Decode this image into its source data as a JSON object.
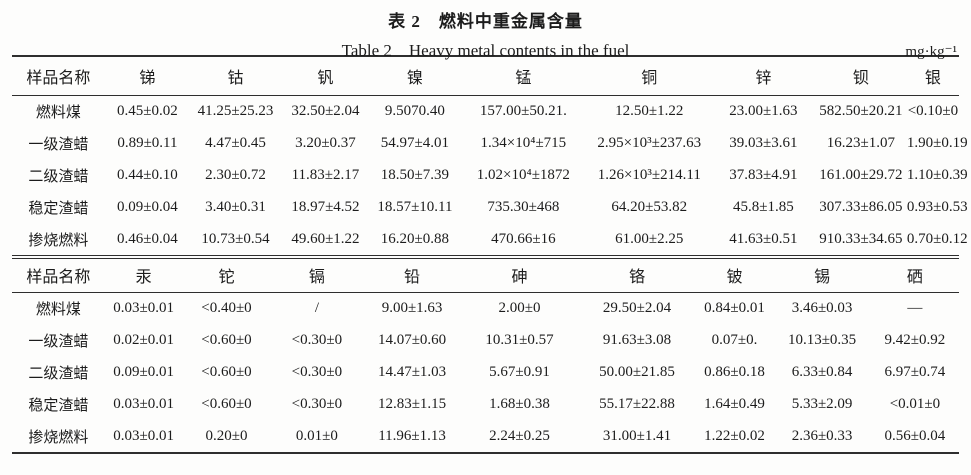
{
  "caption": {
    "title_cn": "表 2　燃料中重金属含量",
    "title_en": "Table 2    Heavy metal contents in the fuel",
    "unit": "mg·kg⁻¹"
  },
  "table1": {
    "headers": [
      "样品名称",
      "锑",
      "钴",
      "钒",
      "镍",
      "锰",
      "铜",
      "锌",
      "钡",
      "银"
    ],
    "rows": [
      [
        "燃料煤",
        "0.45±0.02",
        "41.25±25.23",
        "32.50±2.04",
        "9.5070.40",
        "157.00±50.21.",
        "12.50±1.22",
        "23.00±1.63",
        "582.50±20.21",
        "<0.10±0"
      ],
      [
        "一级渣蜡",
        "0.89±0.11",
        "4.47±0.45",
        "3.20±0.37",
        "54.97±4.01",
        "1.34×10⁴±715",
        "2.95×10³±237.63",
        "39.03±3.61",
        "16.23±1.07",
        "1.90±0.19"
      ],
      [
        "二级渣蜡",
        "0.44±0.10",
        "2.30±0.72",
        "11.83±2.17",
        "18.50±7.39",
        "1.02×10⁴±1872",
        "1.26×10³±214.11",
        "37.83±4.91",
        "161.00±29.72",
        "1.10±0.39"
      ],
      [
        "稳定渣蜡",
        "0.09±0.04",
        "3.40±0.31",
        "18.97±4.52",
        "18.57±10.11",
        "735.30±468",
        "64.20±53.82",
        "45.8±1.85",
        "307.33±86.05",
        "0.93±0.53"
      ],
      [
        "掺烧燃料",
        "0.46±0.04",
        "10.73±0.54",
        "49.60±1.22",
        "16.20±0.88",
        "470.66±16",
        "61.00±2.25",
        "41.63±0.51",
        "910.33±34.65",
        "0.70±0.12"
      ]
    ]
  },
  "table2": {
    "headers": [
      "样品名称",
      "汞",
      "铊",
      "镉",
      "铅",
      "砷",
      "铬",
      "铍",
      "锡",
      "硒"
    ],
    "rows": [
      [
        "燃料煤",
        "0.03±0.01",
        "<0.40±0",
        "/",
        "9.00±1.63",
        "2.00±0",
        "29.50±2.04",
        "0.84±0.01",
        "3.46±0.03",
        "—"
      ],
      [
        "一级渣蜡",
        "0.02±0.01",
        "<0.60±0",
        "<0.30±0",
        "14.07±0.60",
        "10.31±0.57",
        "91.63±3.08",
        "0.07±0.",
        "10.13±0.35",
        "9.42±0.92"
      ],
      [
        "二级渣蜡",
        "0.09±0.01",
        "<0.60±0",
        "<0.30±0",
        "14.47±1.03",
        "5.67±0.91",
        "50.00±21.85",
        "0.86±0.18",
        "6.33±0.84",
        "6.97±0.74"
      ],
      [
        "稳定渣蜡",
        "0.03±0.01",
        "<0.60±0",
        "<0.30±0",
        "12.83±1.15",
        "1.68±0.38",
        "55.17±22.88",
        "1.64±0.49",
        "5.33±2.09",
        "<0.01±0"
      ],
      [
        "掺烧燃料",
        "0.03±0.01",
        "0.20±0",
        "0.01±0",
        "11.96±1.13",
        "2.24±0.25",
        "31.00±1.41",
        "1.22±0.02",
        "2.36±0.33",
        "0.56±0.04"
      ]
    ]
  }
}
